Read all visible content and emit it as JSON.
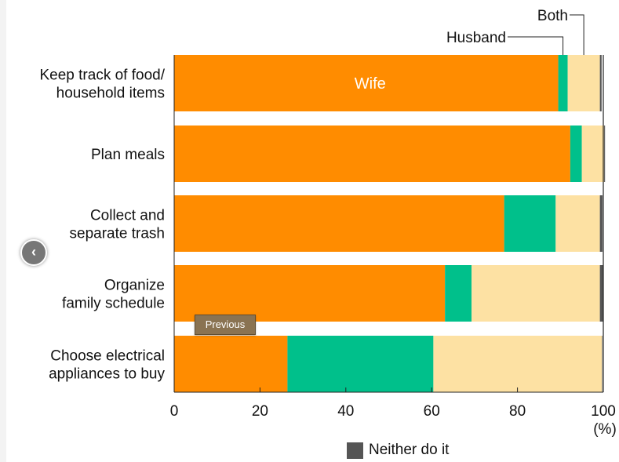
{
  "chart_data": {
    "type": "bar",
    "orientation": "horizontal",
    "stacked": true,
    "categories": [
      [
        "Keep track of food/",
        "household items"
      ],
      [
        "Plan meals"
      ],
      [
        "Collect and",
        "separate trash"
      ],
      [
        "Organize",
        "family schedule"
      ],
      [
        "Choose electrical",
        "appliances to buy"
      ]
    ],
    "series": [
      {
        "name": "Wife",
        "color": "#ff8c00",
        "values": [
          89.5,
          92.3,
          76.9,
          63.1,
          26.4
        ]
      },
      {
        "name": "Husband",
        "color": "#00c08b",
        "values": [
          2.2,
          2.7,
          12.0,
          6.2,
          34.0
        ]
      },
      {
        "name": "Both",
        "color": "#fde1a3",
        "values": [
          7.5,
          5.2,
          10.3,
          29.9,
          39.3
        ]
      },
      {
        "name": "Neither do it",
        "color": "#555555",
        "values": [
          0.4,
          0.2,
          0.6,
          0.7,
          0.1
        ]
      }
    ],
    "xlim": [
      0,
      100
    ],
    "xticks": [
      "0",
      "20",
      "40",
      "60",
      "80",
      "100"
    ],
    "x_unit": "(%)",
    "legend": "Neither do it"
  },
  "nav": {
    "previous_tooltip": "Previous",
    "previous_icon": "chevron-left-icon"
  }
}
